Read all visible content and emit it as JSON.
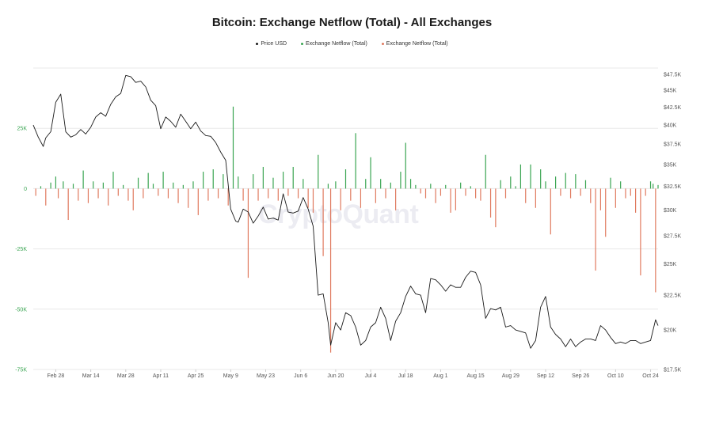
{
  "chart_data": {
    "type": "bar+line",
    "title": "Bitcoin: Exchange Netflow (Total) - All Exchanges",
    "legend": {
      "position": "top-center",
      "entries": [
        {
          "name": "Price USD",
          "color": "#1a1a1a"
        },
        {
          "name": "Exchange Netflow (Total)",
          "color": "#3aa552"
        },
        {
          "name": "Exchange Netflow (Total)",
          "color": "#e07a5f"
        }
      ]
    },
    "watermark": "CryptoQuant",
    "left_axis": {
      "ticks": [
        25000,
        0,
        -25000,
        -50000,
        -75000
      ],
      "tick_labels": [
        "25K",
        "0",
        "-25K",
        "-50K",
        "-75K"
      ],
      "range": [
        -75000,
        50000
      ],
      "color": "#3aa552"
    },
    "right_axis": {
      "tick_values": [
        47500,
        45000,
        42500,
        40000,
        37500,
        35000,
        32500,
        30000,
        27500,
        25000,
        22500,
        20000,
        17500
      ],
      "tick_labels": [
        "$47.5K",
        "$45K",
        "$42.5K",
        "$40K",
        "$37.5K",
        "$35K",
        "$32.5K",
        "$30K",
        "$27.5K",
        "$25K",
        "$22.5K",
        "$20K",
        "$17.5K"
      ],
      "scale": "log",
      "range": [
        17500,
        48500
      ]
    },
    "x_axis": {
      "start": "2022-02-19",
      "end": "2022-10-27",
      "tick_dates": [
        "2022-02-28",
        "2022-03-14",
        "2022-03-28",
        "2022-04-11",
        "2022-04-25",
        "2022-05-09",
        "2022-05-23",
        "2022-06-06",
        "2022-06-20",
        "2022-07-04",
        "2022-07-18",
        "2022-08-01",
        "2022-08-15",
        "2022-08-29",
        "2022-09-12",
        "2022-09-26",
        "2022-10-10",
        "2022-10-24"
      ],
      "tick_labels": [
        "Feb 28",
        "Mar 14",
        "Mar 28",
        "Apr 11",
        "Apr 25",
        "May 9",
        "May 23",
        "Jun 6",
        "Jun 20",
        "Jul 4",
        "Jul 18",
        "Aug 1",
        "Aug 15",
        "Aug 29",
        "Sep 12",
        "Sep 26",
        "Oct 10",
        "Oct 24"
      ]
    },
    "grid": true,
    "price_series": {
      "name": "Price USD",
      "color": "#1a1a1a",
      "points": [
        [
          "2022-02-19",
          40000
        ],
        [
          "2022-02-21",
          38400
        ],
        [
          "2022-02-23",
          37200
        ],
        [
          "2022-02-24",
          38300
        ],
        [
          "2022-02-26",
          39100
        ],
        [
          "2022-02-28",
          43200
        ],
        [
          "2022-03-02",
          44400
        ],
        [
          "2022-03-04",
          39100
        ],
        [
          "2022-03-06",
          38400
        ],
        [
          "2022-03-08",
          38700
        ],
        [
          "2022-03-10",
          39400
        ],
        [
          "2022-03-12",
          38800
        ],
        [
          "2022-03-14",
          39700
        ],
        [
          "2022-03-16",
          41100
        ],
        [
          "2022-03-18",
          41700
        ],
        [
          "2022-03-20",
          41200
        ],
        [
          "2022-03-22",
          42900
        ],
        [
          "2022-03-24",
          44000
        ],
        [
          "2022-03-26",
          44500
        ],
        [
          "2022-03-28",
          47300
        ],
        [
          "2022-03-30",
          47100
        ],
        [
          "2022-04-01",
          46200
        ],
        [
          "2022-04-03",
          46400
        ],
        [
          "2022-04-05",
          45500
        ],
        [
          "2022-04-07",
          43500
        ],
        [
          "2022-04-09",
          42700
        ],
        [
          "2022-04-11",
          39500
        ],
        [
          "2022-04-13",
          41100
        ],
        [
          "2022-04-15",
          40500
        ],
        [
          "2022-04-17",
          39700
        ],
        [
          "2022-04-19",
          41500
        ],
        [
          "2022-04-21",
          40500
        ],
        [
          "2022-04-23",
          39500
        ],
        [
          "2022-04-25",
          40400
        ],
        [
          "2022-04-27",
          39200
        ],
        [
          "2022-04-29",
          38600
        ],
        [
          "2022-05-01",
          38500
        ],
        [
          "2022-05-03",
          37700
        ],
        [
          "2022-05-05",
          36500
        ],
        [
          "2022-05-07",
          35500
        ],
        [
          "2022-05-09",
          30100
        ],
        [
          "2022-05-11",
          28900
        ],
        [
          "2022-05-12",
          28800
        ],
        [
          "2022-05-14",
          30100
        ],
        [
          "2022-05-16",
          29800
        ],
        [
          "2022-05-18",
          28700
        ],
        [
          "2022-05-20",
          29400
        ],
        [
          "2022-05-22",
          30300
        ],
        [
          "2022-05-24",
          29100
        ],
        [
          "2022-05-26",
          29200
        ],
        [
          "2022-05-28",
          29000
        ],
        [
          "2022-05-30",
          31700
        ],
        [
          "2022-06-01",
          29800
        ],
        [
          "2022-06-03",
          29700
        ],
        [
          "2022-06-05",
          29900
        ],
        [
          "2022-06-07",
          31300
        ],
        [
          "2022-06-09",
          30100
        ],
        [
          "2022-06-11",
          28400
        ],
        [
          "2022-06-13",
          22500
        ],
        [
          "2022-06-15",
          22600
        ],
        [
          "2022-06-17",
          20500
        ],
        [
          "2022-06-18",
          19000
        ],
        [
          "2022-06-20",
          20500
        ],
        [
          "2022-06-22",
          20000
        ],
        [
          "2022-06-24",
          21200
        ],
        [
          "2022-06-26",
          21000
        ],
        [
          "2022-06-28",
          20200
        ],
        [
          "2022-06-30",
          19000
        ],
        [
          "2022-07-02",
          19300
        ],
        [
          "2022-07-04",
          20200
        ],
        [
          "2022-07-06",
          20500
        ],
        [
          "2022-07-08",
          21600
        ],
        [
          "2022-07-10",
          20800
        ],
        [
          "2022-07-12",
          19300
        ],
        [
          "2022-07-14",
          20600
        ],
        [
          "2022-07-16",
          21200
        ],
        [
          "2022-07-18",
          22400
        ],
        [
          "2022-07-20",
          23200
        ],
        [
          "2022-07-22",
          22600
        ],
        [
          "2022-07-24",
          22500
        ],
        [
          "2022-07-26",
          21200
        ],
        [
          "2022-07-28",
          23800
        ],
        [
          "2022-07-30",
          23700
        ],
        [
          "2022-08-01",
          23300
        ],
        [
          "2022-08-03",
          22800
        ],
        [
          "2022-08-05",
          23300
        ],
        [
          "2022-08-07",
          23100
        ],
        [
          "2022-08-09",
          23100
        ],
        [
          "2022-08-11",
          23900
        ],
        [
          "2022-08-13",
          24400
        ],
        [
          "2022-08-15",
          24300
        ],
        [
          "2022-08-17",
          23300
        ],
        [
          "2022-08-19",
          20800
        ],
        [
          "2022-08-21",
          21500
        ],
        [
          "2022-08-23",
          21400
        ],
        [
          "2022-08-25",
          21600
        ],
        [
          "2022-08-27",
          20200
        ],
        [
          "2022-08-29",
          20300
        ],
        [
          "2022-08-31",
          20000
        ],
        [
          "2022-09-02",
          19900
        ],
        [
          "2022-09-04",
          19800
        ],
        [
          "2022-09-06",
          18800
        ],
        [
          "2022-09-08",
          19300
        ],
        [
          "2022-09-10",
          21600
        ],
        [
          "2022-09-12",
          22400
        ],
        [
          "2022-09-14",
          20200
        ],
        [
          "2022-09-16",
          19700
        ],
        [
          "2022-09-18",
          19400
        ],
        [
          "2022-09-20",
          18900
        ],
        [
          "2022-09-22",
          19400
        ],
        [
          "2022-09-24",
          18900
        ],
        [
          "2022-09-26",
          19200
        ],
        [
          "2022-09-28",
          19400
        ],
        [
          "2022-09-30",
          19400
        ],
        [
          "2022-10-02",
          19300
        ],
        [
          "2022-10-04",
          20300
        ],
        [
          "2022-10-06",
          20000
        ],
        [
          "2022-10-08",
          19500
        ],
        [
          "2022-10-10",
          19100
        ],
        [
          "2022-10-12",
          19200
        ],
        [
          "2022-10-14",
          19100
        ],
        [
          "2022-10-16",
          19300
        ],
        [
          "2022-10-18",
          19300
        ],
        [
          "2022-10-20",
          19100
        ],
        [
          "2022-10-22",
          19200
        ],
        [
          "2022-10-24",
          19300
        ],
        [
          "2022-10-26",
          20700
        ],
        [
          "2022-10-27",
          20300
        ]
      ]
    },
    "netflow_series": {
      "name": "Exchange Netflow (Total)",
      "positive_color": "#3aa552",
      "negative_color": "#e07a5f",
      "points": [
        [
          "2022-02-20",
          -3000
        ],
        [
          "2022-02-22",
          1000
        ],
        [
          "2022-02-24",
          -7000
        ],
        [
          "2022-02-26",
          2500
        ],
        [
          "2022-02-28",
          5000
        ],
        [
          "2022-03-01",
          -4000
        ],
        [
          "2022-03-03",
          3000
        ],
        [
          "2022-03-05",
          -13000
        ],
        [
          "2022-03-07",
          2000
        ],
        [
          "2022-03-09",
          -5000
        ],
        [
          "2022-03-11",
          7500
        ],
        [
          "2022-03-13",
          -6000
        ],
        [
          "2022-03-15",
          3000
        ],
        [
          "2022-03-17",
          -4000
        ],
        [
          "2022-03-19",
          2500
        ],
        [
          "2022-03-21",
          -7000
        ],
        [
          "2022-03-23",
          7000
        ],
        [
          "2022-03-25",
          -3000
        ],
        [
          "2022-03-27",
          1500
        ],
        [
          "2022-03-29",
          -5000
        ],
        [
          "2022-03-31",
          -9000
        ],
        [
          "2022-04-02",
          4500
        ],
        [
          "2022-04-04",
          -4000
        ],
        [
          "2022-04-06",
          6500
        ],
        [
          "2022-04-08",
          2000
        ],
        [
          "2022-04-10",
          -3000
        ],
        [
          "2022-04-12",
          7000
        ],
        [
          "2022-04-14",
          -4000
        ],
        [
          "2022-04-16",
          2500
        ],
        [
          "2022-04-18",
          -6000
        ],
        [
          "2022-04-20",
          1500
        ],
        [
          "2022-04-22",
          -8000
        ],
        [
          "2022-04-24",
          3000
        ],
        [
          "2022-04-26",
          -11000
        ],
        [
          "2022-04-28",
          7000
        ],
        [
          "2022-04-30",
          -5000
        ],
        [
          "2022-05-02",
          8000
        ],
        [
          "2022-05-04",
          -4000
        ],
        [
          "2022-05-06",
          6000
        ],
        [
          "2022-05-08",
          -7000
        ],
        [
          "2022-05-10",
          34000
        ],
        [
          "2022-05-12",
          5000
        ],
        [
          "2022-05-14",
          -5000
        ],
        [
          "2022-05-16",
          -37000
        ],
        [
          "2022-05-18",
          6000
        ],
        [
          "2022-05-20",
          -5000
        ],
        [
          "2022-05-22",
          9000
        ],
        [
          "2022-05-24",
          -4000
        ],
        [
          "2022-05-26",
          4500
        ],
        [
          "2022-05-28",
          -5000
        ],
        [
          "2022-05-30",
          7000
        ],
        [
          "2022-06-01",
          -3000
        ],
        [
          "2022-06-03",
          9000
        ],
        [
          "2022-06-05",
          -4000
        ],
        [
          "2022-06-07",
          4000
        ],
        [
          "2022-06-09",
          -8000
        ],
        [
          "2022-06-11",
          -10000
        ],
        [
          "2022-06-13",
          14000
        ],
        [
          "2022-06-15",
          -28000
        ],
        [
          "2022-06-17",
          2000
        ],
        [
          "2022-06-18",
          -68000
        ],
        [
          "2022-06-20",
          3000
        ],
        [
          "2022-06-22",
          -9000
        ],
        [
          "2022-06-24",
          8000
        ],
        [
          "2022-06-26",
          -5000
        ],
        [
          "2022-06-28",
          23000
        ],
        [
          "2022-06-30",
          -8000
        ],
        [
          "2022-07-02",
          4000
        ],
        [
          "2022-07-04",
          13000
        ],
        [
          "2022-07-06",
          -6000
        ],
        [
          "2022-07-08",
          4000
        ],
        [
          "2022-07-10",
          -4000
        ],
        [
          "2022-07-12",
          2500
        ],
        [
          "2022-07-14",
          -9000
        ],
        [
          "2022-07-16",
          7000
        ],
        [
          "2022-07-18",
          19000
        ],
        [
          "2022-07-20",
          4000
        ],
        [
          "2022-07-22",
          1500
        ],
        [
          "2022-07-24",
          -2000
        ],
        [
          "2022-07-26",
          -4000
        ],
        [
          "2022-07-28",
          2000
        ],
        [
          "2022-07-30",
          -6000
        ],
        [
          "2022-08-01",
          -3000
        ],
        [
          "2022-08-03",
          1500
        ],
        [
          "2022-08-05",
          -10000
        ],
        [
          "2022-08-07",
          -9000
        ],
        [
          "2022-08-09",
          2500
        ],
        [
          "2022-08-11",
          -3000
        ],
        [
          "2022-08-13",
          1000
        ],
        [
          "2022-08-15",
          -4000
        ],
        [
          "2022-08-17",
          -5000
        ],
        [
          "2022-08-19",
          14000
        ],
        [
          "2022-08-21",
          -12000
        ],
        [
          "2022-08-23",
          -16000
        ],
        [
          "2022-08-25",
          3500
        ],
        [
          "2022-08-27",
          -4000
        ],
        [
          "2022-08-29",
          5000
        ],
        [
          "2022-08-31",
          1000
        ],
        [
          "2022-09-02",
          10000
        ],
        [
          "2022-09-04",
          -6000
        ],
        [
          "2022-09-06",
          10000
        ],
        [
          "2022-09-08",
          -8000
        ],
        [
          "2022-09-10",
          8000
        ],
        [
          "2022-09-12",
          3000
        ],
        [
          "2022-09-14",
          -19000
        ],
        [
          "2022-09-16",
          5000
        ],
        [
          "2022-09-18",
          -3000
        ],
        [
          "2022-09-20",
          6500
        ],
        [
          "2022-09-22",
          -4000
        ],
        [
          "2022-09-24",
          6000
        ],
        [
          "2022-09-26",
          -3000
        ],
        [
          "2022-09-28",
          3500
        ],
        [
          "2022-09-30",
          -6000
        ],
        [
          "2022-10-02",
          -34000
        ],
        [
          "2022-10-04",
          -9000
        ],
        [
          "2022-10-06",
          -20000
        ],
        [
          "2022-10-08",
          4500
        ],
        [
          "2022-10-10",
          -8000
        ],
        [
          "2022-10-12",
          3000
        ],
        [
          "2022-10-14",
          -4000
        ],
        [
          "2022-10-16",
          -3000
        ],
        [
          "2022-10-18",
          -10000
        ],
        [
          "2022-10-20",
          -36000
        ],
        [
          "2022-10-22",
          -3000
        ],
        [
          "2022-10-24",
          3000
        ],
        [
          "2022-10-25",
          2000
        ],
        [
          "2022-10-26",
          -43000
        ],
        [
          "2022-10-27",
          1500
        ]
      ]
    }
  }
}
